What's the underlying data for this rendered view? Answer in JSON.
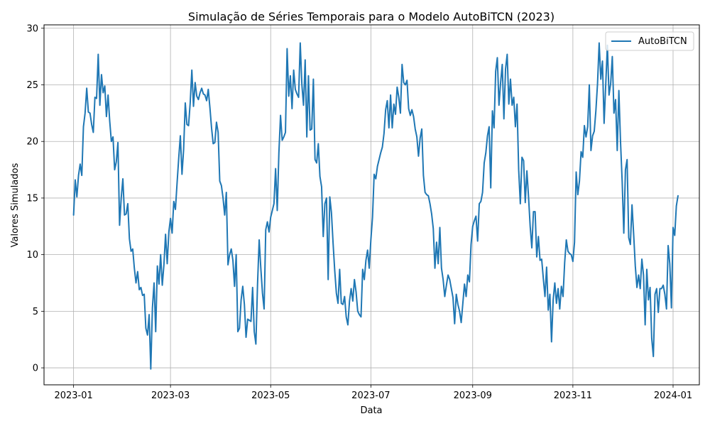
{
  "chart_data": {
    "type": "line",
    "title": "Simulação de Séries Temporais para o Modelo AutoBiTCN (2023)",
    "xlabel": "Data",
    "ylabel": "Valores Simulados",
    "x_tick_labels": [
      "2023-01",
      "2023-03",
      "2023-05",
      "2023-07",
      "2023-09",
      "2023-11",
      "2024-01"
    ],
    "x_tick_days": [
      0,
      59,
      120,
      181,
      243,
      304,
      365
    ],
    "y_ticks": [
      0,
      5,
      10,
      15,
      20,
      25,
      30
    ],
    "xlim": [
      "2022-12-14",
      "2024-01-17"
    ],
    "ylim": [
      -1.5,
      30.3
    ],
    "grid": true,
    "legend_position": "top-right",
    "series": [
      {
        "name": "AutoBiTCN",
        "color": "#1f77b4",
        "x_start": "2023-01-01",
        "x_step_days": 1,
        "values": [
          13.5,
          16.6,
          15.1,
          17.0,
          18.0,
          17.0,
          21.3,
          22.5,
          24.7,
          22.6,
          22.5,
          21.5,
          20.8,
          23.9,
          23.8,
          27.7,
          23.2,
          25.9,
          24.3,
          24.9,
          22.2,
          24.1,
          21.8,
          20.0,
          20.4,
          17.5,
          18.2,
          19.9,
          12.6,
          15.0,
          16.7,
          13.5,
          13.6,
          14.5,
          11.4,
          10.3,
          10.5,
          8.8,
          7.5,
          8.5,
          6.9,
          7.1,
          6.4,
          6.5,
          3.5,
          2.9,
          4.7,
          -0.1,
          5.3,
          7.5,
          3.2,
          9.0,
          7.4,
          10.0,
          7.3,
          9.1,
          11.8,
          9.2,
          12.0,
          13.2,
          11.9,
          14.7,
          14.0,
          16.3,
          18.5,
          20.5,
          17.1,
          19.3,
          23.4,
          21.5,
          21.4,
          23.4,
          26.3,
          23.1,
          25.2,
          24.0,
          23.7,
          24.3,
          24.7,
          24.2,
          24.1,
          23.6,
          24.6,
          23.0,
          21.2,
          19.8,
          19.9,
          21.7,
          20.8,
          16.5,
          16.1,
          15.0,
          13.5,
          15.5,
          9.1,
          10.0,
          10.5,
          9.5,
          7.2,
          10.0,
          3.2,
          3.5,
          6.0,
          7.2,
          5.6,
          2.7,
          4.3,
          4.2,
          4.1,
          7.1,
          3.2,
          2.1,
          7.4,
          11.3,
          8.8,
          6.6,
          5.2,
          12.2,
          12.9,
          12.0,
          13.3,
          13.9,
          14.5,
          17.6,
          13.9,
          19.0,
          22.3,
          20.1,
          20.4,
          20.8,
          28.2,
          24.0,
          25.8,
          22.9,
          26.3,
          24.6,
          24.2,
          23.9,
          28.7,
          25.0,
          23.2,
          27.2,
          20.4,
          25.8,
          21.0,
          21.1,
          25.5,
          18.4,
          18.1,
          19.8,
          16.9,
          16.0,
          11.6,
          14.5,
          15.0,
          7.8,
          15.1,
          13.7,
          11.0,
          8.6,
          6.6,
          5.7,
          8.7,
          5.7,
          5.6,
          6.3,
          4.5,
          3.8,
          5.9,
          7.0,
          5.9,
          7.8,
          6.7,
          5.0,
          4.7,
          4.5,
          8.7,
          7.8,
          9.5,
          10.4,
          8.8,
          11.3,
          13.3,
          17.1,
          16.7,
          17.8,
          18.4,
          19.0,
          19.5,
          20.7,
          22.8,
          23.6,
          21.2,
          24.1,
          21.2,
          23.3,
          22.4,
          24.8,
          23.9,
          22.5,
          26.8,
          25.2,
          25.0,
          25.4,
          22.9,
          22.3,
          22.8,
          22.2,
          21.1,
          20.4,
          18.7,
          20.3,
          21.1,
          17.0,
          15.5,
          15.3,
          15.2,
          14.5,
          13.6,
          12.3,
          8.8,
          11.1,
          9.2,
          12.4,
          8.8,
          7.8,
          6.3,
          7.3,
          8.2,
          7.8,
          7.0,
          6.2,
          3.9,
          6.5,
          5.6,
          5.0,
          4.0,
          5.7,
          7.4,
          6.3,
          8.2,
          7.6,
          10.9,
          12.5,
          13.0,
          13.4,
          11.2,
          14.5,
          14.7,
          15.5,
          18.1,
          19.0,
          20.5,
          21.3,
          15.9,
          22.7,
          21.2,
          26.2,
          27.4,
          23.2,
          25.2,
          26.8,
          22.0,
          26.4,
          27.7,
          23.3,
          25.5,
          23.2,
          23.9,
          21.3,
          23.3,
          17.5,
          14.5,
          18.6,
          18.3,
          14.6,
          17.4,
          15.1,
          12.5,
          10.6,
          13.8,
          13.8,
          9.8,
          11.6,
          9.5,
          9.6,
          7.9,
          6.3,
          8.9,
          5.1,
          6.5,
          2.3,
          6.0,
          7.5,
          5.7,
          7.0,
          5.2,
          7.2,
          6.3,
          9.3,
          11.3,
          10.3,
          10.1,
          10.0,
          9.4,
          11.1,
          17.3,
          15.3,
          16.5,
          19.1,
          18.6,
          21.4,
          20.4,
          21.3,
          25.0,
          19.2,
          20.5,
          20.9,
          22.7,
          25.1,
          28.7,
          25.5,
          27.1,
          21.6,
          25.0,
          28.5,
          24.1,
          25.1,
          27.5,
          22.5,
          23.7,
          19.2,
          24.5,
          20.0,
          16.5,
          11.9,
          17.5,
          18.4,
          11.5,
          10.9,
          14.4,
          11.8,
          9.0,
          7.1,
          8.2,
          7.0,
          9.6,
          8.2,
          3.8,
          8.7,
          6.0,
          7.1,
          2.6,
          1.0,
          6.5,
          7.0,
          4.9,
          7.0,
          7.0,
          7.3,
          6.5,
          5.2,
          10.8,
          9.2,
          5.3,
          12.4,
          11.7,
          14.3,
          15.2
        ]
      }
    ]
  }
}
